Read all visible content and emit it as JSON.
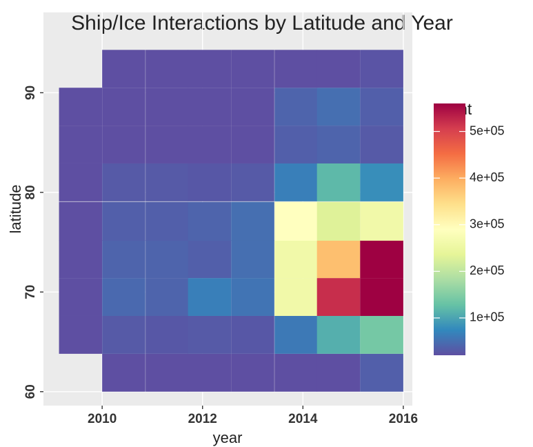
{
  "chart_data": {
    "type": "heatmap",
    "title": "Ship/Ice Interactions by Latitude and Year",
    "x_label": "year",
    "y_label": "latitude",
    "legend_title": "count",
    "x": [
      2009.57,
      2010.43,
      2011.29,
      2012.14,
      2013.0,
      2013.86,
      2014.71,
      2015.57
    ],
    "y": [
      61.9,
      65.7,
      69.5,
      73.3,
      77.1,
      81.0,
      84.8,
      88.6,
      92.4
    ],
    "z": [
      [
        null,
        20000,
        20000,
        20000,
        20000,
        20000,
        20000,
        35000
      ],
      [
        20000,
        30000,
        28000,
        30000,
        28000,
        60000,
        110000,
        140000
      ],
      [
        20000,
        45000,
        40000,
        65000,
        55000,
        260000,
        520000,
        560000
      ],
      [
        20000,
        40000,
        40000,
        35000,
        50000,
        260000,
        380000,
        560000
      ],
      [
        20000,
        35000,
        35000,
        40000,
        50000,
        290000,
        230000,
        260000
      ],
      [
        20000,
        30000,
        30000,
        28000,
        30000,
        65000,
        120000,
        80000
      ],
      [
        20000,
        20000,
        20000,
        20000,
        20000,
        35000,
        40000,
        30000
      ],
      [
        20000,
        20000,
        20000,
        20000,
        20000,
        40000,
        50000,
        35000
      ],
      [
        null,
        20000,
        20000,
        20000,
        20000,
        20000,
        20000,
        25000
      ]
    ],
    "xlim": [
      2008.83,
      2016.18
    ],
    "ylim": [
      58.6,
      98.06
    ],
    "xticks": [
      2010,
      2012,
      2014,
      2016
    ],
    "yticks": [
      60,
      70,
      80,
      90
    ],
    "zlim": [
      20000,
      560000
    ],
    "zticks": [
      {
        "value": 100000,
        "label": "1e+05"
      },
      {
        "value": 200000,
        "label": "2e+05"
      },
      {
        "value": 300000,
        "label": "3e+05"
      },
      {
        "value": 400000,
        "label": "4e+05"
      },
      {
        "value": 500000,
        "label": "5e+05"
      }
    ],
    "colors": [
      "#5E4FA2",
      "#3288BD",
      "#66C2A5",
      "#ABDDA4",
      "#E6F598",
      "#FFFFBF",
      "#FEE08B",
      "#FDAE61",
      "#F46D43",
      "#D53E4F",
      "#9E0142"
    ],
    "grid": true
  }
}
